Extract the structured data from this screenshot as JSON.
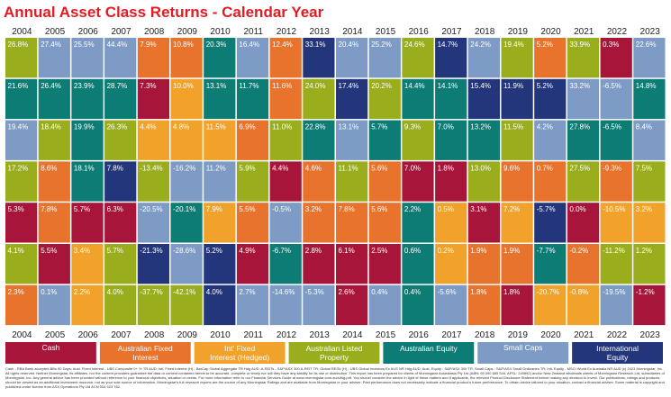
{
  "title": "Annual Asset Class Returns - Calendar Year",
  "chart_data": {
    "type": "table",
    "title": "Annual Asset Class Returns - Calendar Year",
    "years": [
      "2004",
      "2005",
      "2006",
      "2007",
      "2008",
      "2009",
      "2010",
      "2011",
      "2012",
      "2013",
      "2014",
      "2015",
      "2016",
      "2017",
      "2018",
      "2019",
      "2020",
      "2021",
      "2022",
      "2023"
    ],
    "asset_classes": [
      {
        "key": "cash",
        "name": "Cash",
        "color": "#a7153a"
      },
      {
        "key": "aus_fixed",
        "name": "Australian Fixed Interest",
        "color": "#e8732c"
      },
      {
        "key": "intl_fixed",
        "name": "Int' Fixed Interest (Hedged)",
        "color": "#f0a22b"
      },
      {
        "key": "aus_property",
        "name": "Australian Listed Property",
        "color": "#9aae1d"
      },
      {
        "key": "aus_equity",
        "name": "Australian Equity",
        "color": "#0d7c74"
      },
      {
        "key": "small_caps",
        "name": "Small Caps",
        "color": "#7d9bc4"
      },
      {
        "key": "intl_equity",
        "name": "International Equity",
        "color": "#24367b"
      }
    ],
    "columns": [
      {
        "year": "2004",
        "cells": [
          {
            "v": "26.8%",
            "a": "aus_property"
          },
          {
            "v": "21.6%",
            "a": "aus_equity"
          },
          {
            "v": "19.4%",
            "a": "small_caps"
          },
          {
            "v": "17.2%",
            "a": "aus_property"
          },
          {
            "v": "5.3%",
            "a": "cash"
          },
          {
            "v": "4.1%",
            "a": "aus_property"
          },
          {
            "v": "2.3%",
            "a": "aus_fixed"
          }
        ]
      },
      {
        "year": "2005",
        "cells": [
          {
            "v": "27.4%",
            "a": "small_caps"
          },
          {
            "v": "26.4%",
            "a": "aus_equity"
          },
          {
            "v": "18.4%",
            "a": "aus_property"
          },
          {
            "v": "8.6%",
            "a": "aus_fixed"
          },
          {
            "v": "7.8%",
            "a": "aus_fixed"
          },
          {
            "v": "5.5%",
            "a": "cash"
          },
          {
            "v": "0.1%",
            "a": "small_caps"
          }
        ]
      },
      {
        "year": "2006",
        "cells": [
          {
            "v": "25.5%",
            "a": "small_caps"
          },
          {
            "v": "23.9%",
            "a": "aus_equity"
          },
          {
            "v": "19.9%",
            "a": "aus_equity"
          },
          {
            "v": "18.1%",
            "a": "aus_equity"
          },
          {
            "v": "5.7%",
            "a": "cash"
          },
          {
            "v": "3.4%",
            "a": "intl_fixed"
          },
          {
            "v": "2.2%",
            "a": "intl_fixed"
          }
        ]
      },
      {
        "year": "2007",
        "cells": [
          {
            "v": "44.4%",
            "a": "small_caps"
          },
          {
            "v": "28.7%",
            "a": "aus_equity"
          },
          {
            "v": "26.3%",
            "a": "aus_property"
          },
          {
            "v": "7.8%",
            "a": "intl_equity"
          },
          {
            "v": "6.3%",
            "a": "cash"
          },
          {
            "v": "5.7%",
            "a": "aus_property"
          },
          {
            "v": "4.0%",
            "a": "aus_property"
          }
        ]
      },
      {
        "year": "2008",
        "cells": [
          {
            "v": "7.9%",
            "a": "aus_fixed"
          },
          {
            "v": "7.3%",
            "a": "cash"
          },
          {
            "v": "4.4%",
            "a": "intl_fixed"
          },
          {
            "v": "-13.4%",
            "a": "aus_property"
          },
          {
            "v": "-20.5%",
            "a": "small_caps"
          },
          {
            "v": "-21.3%",
            "a": "intl_equity"
          },
          {
            "v": "-37.7%",
            "a": "aus_property"
          }
        ]
      },
      {
        "year": "2009",
        "cells": [
          {
            "v": "10.8%",
            "a": "aus_fixed"
          },
          {
            "v": "10.0%",
            "a": "intl_fixed"
          },
          {
            "v": "4.8%",
            "a": "intl_fixed"
          },
          {
            "v": "-16.2%",
            "a": "small_caps"
          },
          {
            "v": "-20.1%",
            "a": "aus_equity"
          },
          {
            "v": "-28.6%",
            "a": "small_caps"
          },
          {
            "v": "-42.1%",
            "a": "aus_property"
          }
        ]
      },
      {
        "year": "2010",
        "cells": [
          {
            "v": "20.3%",
            "a": "aus_equity"
          },
          {
            "v": "13.1%",
            "a": "aus_equity"
          },
          {
            "v": "11.5%",
            "a": "intl_fixed"
          },
          {
            "v": "11.2%",
            "a": "small_caps"
          },
          {
            "v": "7.9%",
            "a": "intl_fixed"
          },
          {
            "v": "5.2%",
            "a": "intl_equity"
          },
          {
            "v": "4.0%",
            "a": "intl_equity"
          }
        ]
      },
      {
        "year": "2011",
        "cells": [
          {
            "v": "16.4%",
            "a": "small_caps"
          },
          {
            "v": "11.7%",
            "a": "aus_equity"
          },
          {
            "v": "6.9%",
            "a": "aus_fixed"
          },
          {
            "v": "5.9%",
            "a": "aus_property"
          },
          {
            "v": "5.5%",
            "a": "aus_fixed"
          },
          {
            "v": "4.9%",
            "a": "cash"
          },
          {
            "v": "2.7%",
            "a": "small_caps"
          }
        ]
      },
      {
        "year": "2012",
        "cells": [
          {
            "v": "12.4%",
            "a": "aus_fixed"
          },
          {
            "v": "11.6%",
            "a": "aus_fixed"
          },
          {
            "v": "11.0%",
            "a": "aus_property"
          },
          {
            "v": "4.4%",
            "a": "cash"
          },
          {
            "v": "-0.5%",
            "a": "small_caps"
          },
          {
            "v": "-6.7%",
            "a": "aus_equity"
          },
          {
            "v": "-14.6%",
            "a": "small_caps"
          }
        ]
      },
      {
        "year": "2013",
        "cells": [
          {
            "v": "33.1%",
            "a": "intl_equity"
          },
          {
            "v": "24.0%",
            "a": "aus_property"
          },
          {
            "v": "22.8%",
            "a": "aus_equity"
          },
          {
            "v": "4.6%",
            "a": "aus_fixed"
          },
          {
            "v": "3.2%",
            "a": "aus_fixed"
          },
          {
            "v": "2.8%",
            "a": "cash"
          },
          {
            "v": "-5.3%",
            "a": "small_caps"
          }
        ]
      },
      {
        "year": "2014",
        "cells": [
          {
            "v": "20.4%",
            "a": "small_caps"
          },
          {
            "v": "17.4%",
            "a": "intl_equity"
          },
          {
            "v": "13.1%",
            "a": "small_caps"
          },
          {
            "v": "11.1%",
            "a": "aus_property"
          },
          {
            "v": "7.8%",
            "a": "aus_fixed"
          },
          {
            "v": "6.1%",
            "a": "cash"
          },
          {
            "v": "2.6%",
            "a": "cash"
          }
        ]
      },
      {
        "year": "2015",
        "cells": [
          {
            "v": "25.2%",
            "a": "small_caps"
          },
          {
            "v": "20.2%",
            "a": "aus_property"
          },
          {
            "v": "5.7%",
            "a": "aus_equity"
          },
          {
            "v": "5.6%",
            "a": "aus_fixed"
          },
          {
            "v": "5.6%",
            "a": "aus_fixed"
          },
          {
            "v": "2.5%",
            "a": "cash"
          },
          {
            "v": "0.4%",
            "a": "small_caps"
          }
        ]
      },
      {
        "year": "2016",
        "cells": [
          {
            "v": "24.6%",
            "a": "aus_property"
          },
          {
            "v": "14.4%",
            "a": "aus_equity"
          },
          {
            "v": "9.3%",
            "a": "aus_property"
          },
          {
            "v": "7.0%",
            "a": "cash"
          },
          {
            "v": "2.2%",
            "a": "aus_equity"
          },
          {
            "v": "0.6%",
            "a": "aus_equity"
          },
          {
            "v": "0.4%",
            "a": "aus_equity"
          }
        ]
      },
      {
        "year": "2017",
        "cells": [
          {
            "v": "14.7%",
            "a": "intl_equity"
          },
          {
            "v": "14.1%",
            "a": "aus_equity"
          },
          {
            "v": "7.0%",
            "a": "aus_equity"
          },
          {
            "v": "1.8%",
            "a": "cash"
          },
          {
            "v": "0.5%",
            "a": "intl_fixed"
          },
          {
            "v": "0.2%",
            "a": "intl_fixed"
          },
          {
            "v": "-5.6%",
            "a": "small_caps"
          }
        ]
      },
      {
        "year": "2018",
        "cells": [
          {
            "v": "24.2%",
            "a": "small_caps"
          },
          {
            "v": "15.4%",
            "a": "intl_equity"
          },
          {
            "v": "13.2%",
            "a": "aus_equity"
          },
          {
            "v": "13.0%",
            "a": "aus_property"
          },
          {
            "v": "3.1%",
            "a": "cash"
          },
          {
            "v": "1.9%",
            "a": "aus_fixed"
          },
          {
            "v": "1.8%",
            "a": "aus_fixed"
          }
        ]
      },
      {
        "year": "2019",
        "cells": [
          {
            "v": "19.4%",
            "a": "aus_property"
          },
          {
            "v": "11.9%",
            "a": "intl_equity"
          },
          {
            "v": "11.5%",
            "a": "aus_property"
          },
          {
            "v": "9.6%",
            "a": "aus_fixed"
          },
          {
            "v": "7.2%",
            "a": "intl_fixed"
          },
          {
            "v": "1.9%",
            "a": "aus_fixed"
          },
          {
            "v": "1.8%",
            "a": "cash"
          }
        ]
      },
      {
        "year": "2020",
        "cells": [
          {
            "v": "5.2%",
            "a": "aus_fixed"
          },
          {
            "v": "5.2%",
            "a": "intl_equity"
          },
          {
            "v": "4.2%",
            "a": "small_caps"
          },
          {
            "v": "0.7%",
            "a": "aus_fixed"
          },
          {
            "v": "-5.7%",
            "a": "intl_equity"
          },
          {
            "v": "-7.7%",
            "a": "aus_equity"
          },
          {
            "v": "-20.7%",
            "a": "intl_fixed"
          }
        ]
      },
      {
        "year": "2021",
        "cells": [
          {
            "v": "33.9%",
            "a": "aus_property"
          },
          {
            "v": "33.2%",
            "a": "small_caps"
          },
          {
            "v": "27.8%",
            "a": "aus_equity"
          },
          {
            "v": "27.5%",
            "a": "aus_property"
          },
          {
            "v": "0.0%",
            "a": "cash"
          },
          {
            "v": "-0.2%",
            "a": "aus_fixed"
          },
          {
            "v": "-0.8%",
            "a": "intl_fixed"
          }
        ]
      },
      {
        "year": "2022",
        "cells": [
          {
            "v": "0.3%",
            "a": "cash"
          },
          {
            "v": "-6.5%",
            "a": "small_caps"
          },
          {
            "v": "-6.5%",
            "a": "aus_equity"
          },
          {
            "v": "-9.3%",
            "a": "aus_fixed"
          },
          {
            "v": "-10.5%",
            "a": "intl_fixed"
          },
          {
            "v": "-11.2%",
            "a": "aus_property"
          },
          {
            "v": "-19.5%",
            "a": "small_caps"
          }
        ]
      },
      {
        "year": "2023",
        "cells": [
          {
            "v": "22.6%",
            "a": "small_caps"
          },
          {
            "v": "14.8%",
            "a": "aus_equity"
          },
          {
            "v": "8.4%",
            "a": "small_caps"
          },
          {
            "v": "7.5%",
            "a": "aus_property"
          },
          {
            "v": "3.2%",
            "a": "intl_fixed"
          },
          {
            "v": "1.2%",
            "a": "aus_property"
          },
          {
            "v": "-1.2%",
            "a": "cash"
          }
        ]
      }
    ]
  },
  "footer": "Cash - RBA Bank accepted Bills 90 Days; Aust. Fixed Interest - UBS Composite 0+ Yr TR AUD; Intl. Fixed Interest (H) - BarCap Global Aggregate TR Hdg AUD; A-REITs - S&P/ASX 300 A-REIT TR; Global REITs (H) - UBS Global Investors Ex AUS NR Hdg AUD; Aust. Equity - S&P/ASX 300 TR; Small Caps - S&P/ASX Small Ordinaries TR; Intl. Equity - MSCI World Ex Australia NR AUD (c) 2023 Morningstar, Inc. All rights reserved. Neither Morningstar, its affiliates, nor the content providers guarantee the data or content contained herein to be accurate, complete or timely nor will they have any liability for its use or distribution. This report has been prepared for clients of Morningstar Australasia Pty Ltd (ABN: 95 090 665 544, AFSL: 240892) and/or New Zealand wholesale clients of Morningstar Research Ltd, subsidiaries of Morningstar, Inc. Any general advice has been provided without reference to your financial objectives, situation or needs. For more information refer to our Financial Services Guide at www.morningstar.com.au/s/fsg.pdf. You should consider the advice in light of these matters and if applicable, the relevant Product Disclosure Statement before making any decision to invest. Our publications, ratings and products should be viewed as an additional investment resource, not as your sole source of information. Morningstar's full research reports are the source of any Morningstar Ratings and are available from Morningstar or your adviser. Past performance does not necessarily indicate a financial product's future performance. To obtain advice tailored to your situation, contact a financial adviser. Some material is copyright and published under licence from ASX Operations Pty Ltd ACN 004 523 782."
}
